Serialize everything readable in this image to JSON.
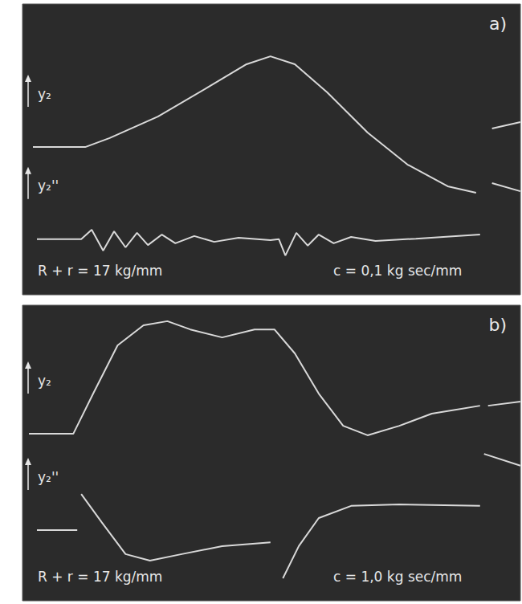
{
  "chart_data": [
    {
      "type": "line",
      "title": "a)",
      "annotations": [
        "R + r = 17 kg/mm",
        "c = 0,1 kg sec/mm"
      ],
      "xlim": [
        0,
        100
      ],
      "ylim": [
        0,
        100
      ],
      "grid": false,
      "tick_labels": false,
      "series": [
        {
          "name": "y₂",
          "color": "#d9d9d9",
          "x": [
            2.1,
            12.6,
            17.5,
            27.2,
            36.9,
            45.0,
            49.8,
            54.7,
            61.2,
            69.3,
            77.3,
            85.4,
            91.1,
            93.0,
            94.3,
            100
          ],
          "values": [
            50.8,
            50.8,
            53.9,
            61.3,
            71.0,
            79.3,
            82.0,
            79.3,
            69.6,
            55.8,
            44.8,
            37.3,
            35.1,
            null,
            57.2,
            59.4
          ]
        },
        {
          "name": "y₂''",
          "color": "#d9d9d9",
          "x": [
            2.9,
            11.8,
            13.9,
            16.2,
            18.4,
            20.7,
            23.0,
            25.2,
            28.0,
            30.7,
            34.5,
            38.5,
            43.4,
            49.8,
            51.5,
            52.8,
            55.0,
            57.3,
            59.5,
            62.5,
            66.0,
            70.9,
            79.0,
            91.9,
            93.0,
            94.3,
            100
          ],
          "values": [
            19.1,
            19.1,
            22.4,
            15.2,
            21.8,
            16.3,
            21.3,
            17.1,
            20.7,
            17.7,
            20.2,
            18.2,
            19.6,
            18.8,
            19.1,
            13.5,
            21.3,
            16.9,
            20.7,
            17.7,
            19.9,
            18.5,
            19.3,
            20.7,
            null,
            38.4,
            35.6
          ]
        }
      ]
    },
    {
      "type": "line",
      "title": "b)",
      "annotations": [
        "R + r = 17 kg/mm",
        "c = 1,0 kg sec/mm"
      ],
      "xlim": [
        0,
        100
      ],
      "ylim": [
        0,
        100
      ],
      "grid": false,
      "tick_labels": false,
      "series": [
        {
          "name": "y₂",
          "color": "#d9d9d9",
          "x": [
            1.3,
            10.2,
            14.2,
            19.1,
            24.3,
            29.1,
            33.7,
            40.1,
            46.6,
            50.6,
            54.7,
            59.5,
            64.4,
            69.3,
            75.7,
            82.2,
            91.9,
            92.7,
            93.5,
            100
          ],
          "values": [
            56.5,
            56.5,
            70.1,
            86.4,
            93.2,
            94.6,
            91.8,
            89.1,
            91.8,
            91.8,
            83.7,
            70.1,
            59.2,
            56.0,
            59.2,
            63.3,
            66.0,
            null,
            66.0,
            67.4
          ]
        },
        {
          "name": "y₂''",
          "color": "#d9d9d9",
          "x": [
            2.9,
            11.0,
            11.4,
            11.8,
            15.9,
            20.7,
            25.6,
            32.0,
            40.1,
            49.8,
            51.0,
            52.3,
            55.5,
            59.5,
            66.0,
            75.7,
            91.9,
            92.3,
            92.7,
            100
          ],
          "values": [
            23.9,
            23.9,
            null,
            36.1,
            26.6,
            15.8,
            13.6,
            15.8,
            18.5,
            19.8,
            null,
            7.6,
            18.5,
            28.0,
            32.1,
            32.6,
            32.1,
            null,
            49.7,
            45.7
          ]
        }
      ]
    }
  ]
}
